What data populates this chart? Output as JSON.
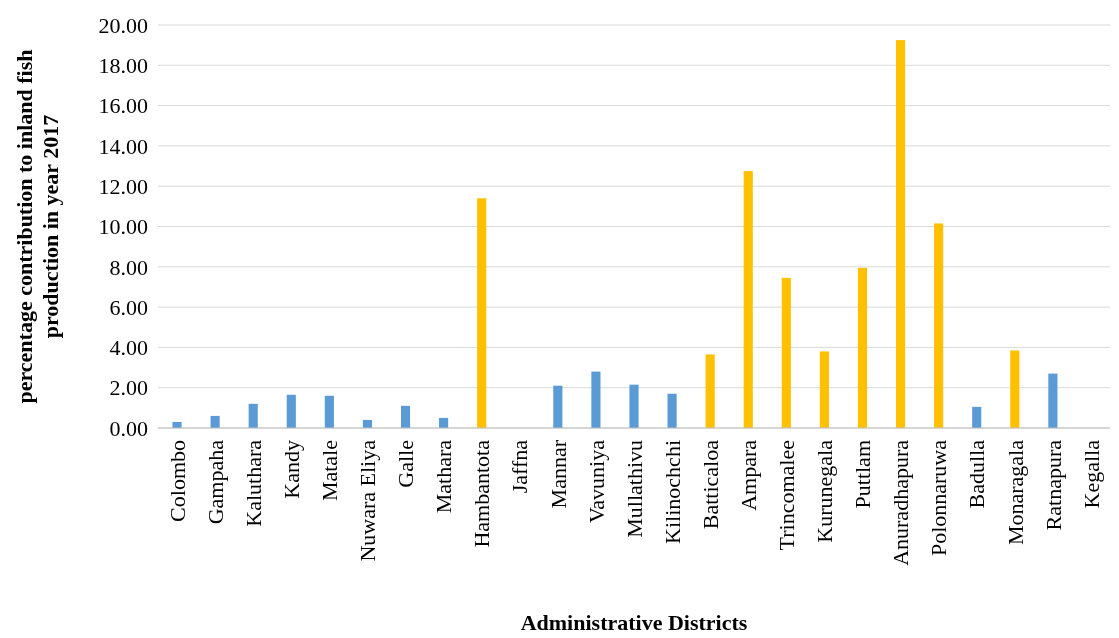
{
  "chart_data": {
    "type": "bar",
    "xlabel": "Administrative Districts",
    "ylabel": "percentage contribution to inland fish production in year 2017",
    "categories": [
      "Colombo",
      "Gampaha",
      "Kaluthara",
      "Kandy",
      "Matale",
      "Nuwara Eliya",
      "Galle",
      "Mathara",
      "Hambantota",
      "Jaffna",
      "Mannar",
      "Vavuniya",
      "Mullathivu",
      "Kilinochchi",
      "Batticaloa",
      "Ampara",
      "Trincomalee",
      "Kurunegala",
      "Puttlam",
      "Anuradhapura",
      "Polonnaruwa",
      "Badulla",
      "Monaragala",
      "Ratnapura",
      "Kegalla"
    ],
    "values": [
      0.3,
      0.6,
      1.2,
      1.65,
      1.6,
      0.4,
      1.1,
      0.5,
      11.4,
      0,
      2.1,
      2.8,
      2.15,
      1.7,
      3.65,
      12.75,
      7.45,
      3.8,
      7.95,
      19.25,
      10.15,
      1.05,
      3.85,
      2.7,
      0
    ],
    "colors": [
      "#5b9bd5",
      "#5b9bd5",
      "#5b9bd5",
      "#5b9bd5",
      "#5b9bd5",
      "#5b9bd5",
      "#5b9bd5",
      "#5b9bd5",
      "#ffc000",
      "#5b9bd5",
      "#5b9bd5",
      "#5b9bd5",
      "#5b9bd5",
      "#5b9bd5",
      "#ffc000",
      "#ffc000",
      "#ffc000",
      "#ffc000",
      "#ffc000",
      "#ffc000",
      "#ffc000",
      "#5b9bd5",
      "#ffc000",
      "#5b9bd5",
      "#5b9bd5"
    ],
    "ylim": [
      0,
      20
    ],
    "yticks": [
      {
        "value": 0,
        "label": "0.00"
      },
      {
        "value": 2,
        "label": "2.00"
      },
      {
        "value": 4,
        "label": "4.00"
      },
      {
        "value": 6,
        "label": "6.00"
      },
      {
        "value": 8,
        "label": "8.00"
      },
      {
        "value": 10,
        "label": "10.00"
      },
      {
        "value": 12,
        "label": "12.00"
      },
      {
        "value": 14,
        "label": "14.00"
      },
      {
        "value": 16,
        "label": "16.00"
      },
      {
        "value": 18,
        "label": "18.00"
      },
      {
        "value": 20,
        "label": "20.00"
      }
    ],
    "grid": "y"
  }
}
